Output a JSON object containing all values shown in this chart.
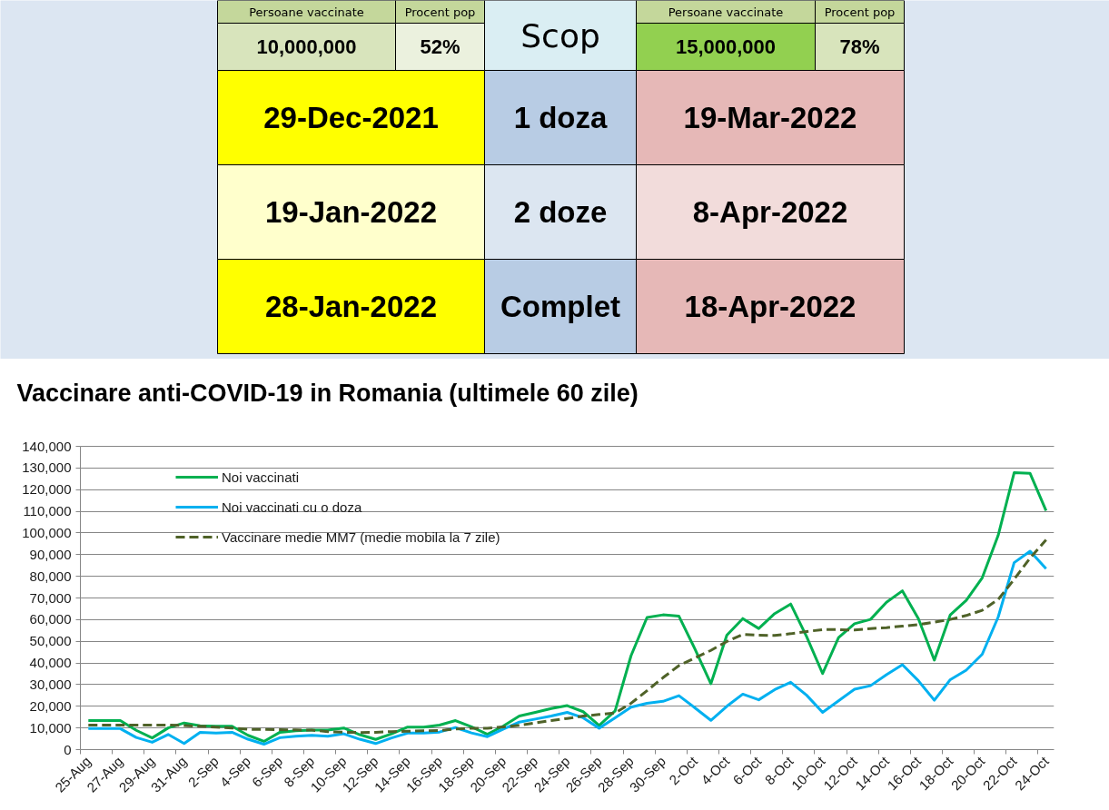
{
  "chart_data": [
    {
      "type": "other",
      "annotations": [
        "Persoane vaccinate",
        "Procent pop",
        "Scop",
        "Persoane vaccinate",
        "Procent pop",
        "10,000,000",
        "52%",
        "15,000,000",
        "78%",
        "29-Dec-2021",
        "1 doza",
        "19-Mar-2022",
        "19-Jan-2022",
        "2 doze",
        "8-Apr-2022",
        "28-Jan-2022",
        "Complet",
        "18-Apr-2022"
      ],
      "colors": [
        "#c4d79b",
        "#c4d79b",
        "#daeef3",
        "#c4d79b",
        "#c4d79b",
        "#d8e4bc",
        "#ebf1de",
        "#92d050",
        "#d8e4bc",
        "#ffff00",
        "#b8cce4",
        "#e6b8b7",
        "#ffffcc",
        "#dce6f1",
        "#f2dcdb",
        "#ffff00",
        "#b8cce4",
        "#e6b8b7"
      ]
    },
    {
      "type": "line",
      "title": "Vaccinare anti-COVID-19 in Romania (ultimele 60 zile)",
      "categories": [
        "25-Aug",
        null,
        "27-Aug",
        null,
        "29-Aug",
        null,
        "31-Aug",
        null,
        "2-Sep",
        null,
        "4-Sep",
        null,
        "6-Sep",
        null,
        "8-Sep",
        null,
        "10-Sep",
        null,
        "12-Sep",
        null,
        "14-Sep",
        null,
        "16-Sep",
        null,
        "18-Sep",
        null,
        "20-Sep",
        null,
        "22-Sep",
        null,
        "24-Sep",
        null,
        "26-Sep",
        null,
        "28-Sep",
        null,
        "30-Sep",
        null,
        "2-Oct",
        null,
        "4-Oct",
        null,
        "6-Oct",
        null,
        "8-Oct",
        null,
        "10-Oct",
        null,
        "12-Oct",
        null,
        "14-Oct",
        null,
        "16-Oct",
        null,
        "18-Oct",
        null,
        "20-Oct",
        null,
        "22-Oct",
        null,
        "24-Oct"
      ],
      "series": [
        {
          "name": "Noi vaccinati",
          "color": "#00b050",
          "values": [
            13400,
            13400,
            13400,
            8900,
            5400,
            10000,
            12300,
            11000,
            10800,
            10800,
            6600,
            3800,
            8000,
            8700,
            9000,
            9000,
            10000,
            6900,
            4700,
            7300,
            10400,
            10400,
            11300,
            13400,
            10500,
            7100,
            10900,
            15500,
            17200,
            19000,
            20300,
            17500,
            11200,
            17900,
            43400,
            61000,
            62200,
            61600,
            46500,
            30400,
            52800,
            60500,
            55900,
            62800,
            67200,
            52100,
            35100,
            51700,
            58100,
            60100,
            68000,
            73300,
            60500,
            41300,
            62200,
            68900,
            79300,
            98900,
            127800,
            127500,
            110300
          ]
        },
        {
          "name": "Noi vaccinati cu o doza",
          "color": "#00b0f0",
          "values": [
            9700,
            9700,
            9700,
            5600,
            3400,
            7000,
            2800,
            8000,
            7600,
            8000,
            4800,
            2500,
            5500,
            6200,
            6600,
            6200,
            7300,
            4800,
            2800,
            5400,
            7600,
            7700,
            8100,
            10200,
            7700,
            6000,
            9500,
            12700,
            14100,
            15500,
            17200,
            14700,
            9900,
            14700,
            19600,
            21400,
            22300,
            24900,
            19300,
            13500,
            20000,
            25600,
            23000,
            27700,
            31100,
            25100,
            17200,
            22500,
            27900,
            29500,
            34600,
            39200,
            31800,
            22800,
            32300,
            36700,
            44000,
            61200,
            86300,
            91600,
            83500
          ]
        },
        {
          "name": "Vaccinare medie MM7 (medie mobila la 7 zile)",
          "color": "#4f6228",
          "line_style": "dashed",
          "values": [
            11300,
            11300,
            11300,
            11300,
            11300,
            11300,
            11100,
            10800,
            10400,
            10000,
            9400,
            9300,
            9200,
            9100,
            9000,
            8300,
            8000,
            7900,
            8000,
            8300,
            8500,
            8700,
            8800,
            9500,
            9900,
            9900,
            10500,
            11200,
            12300,
            13400,
            14400,
            15500,
            16200,
            16900,
            21400,
            27200,
            33200,
            38800,
            42300,
            45800,
            49900,
            53200,
            52800,
            52700,
            53500,
            54500,
            55400,
            55400,
            55200,
            55900,
            56300,
            57000,
            57700,
            58800,
            60100,
            61900,
            64300,
            69300,
            78600,
            88400,
            96800
          ]
        }
      ],
      "ylim": [
        0,
        140000
      ],
      "yticks": [
        0,
        {
          "value": 10000,
          "label": "10,000"
        },
        {
          "value": 20000,
          "label": "20,000"
        },
        {
          "value": 30000,
          "label": "30,000"
        },
        {
          "value": 40000,
          "label": "40,000"
        },
        {
          "value": 50000,
          "label": "50,000"
        },
        {
          "value": 60000,
          "label": "60,000"
        },
        {
          "value": 70000,
          "label": "70,000"
        },
        {
          "value": 80000,
          "label": "80,000"
        },
        {
          "value": 90000,
          "label": "90,000"
        },
        {
          "value": 100000,
          "label": "100,000"
        },
        {
          "value": 110000,
          "label": "110,000"
        },
        {
          "value": 120000,
          "label": "120,000"
        },
        {
          "value": 130000,
          "label": "130,000"
        },
        {
          "value": 140000,
          "label": "140,000"
        }
      ],
      "grid": "y",
      "legend": "top left"
    }
  ]
}
